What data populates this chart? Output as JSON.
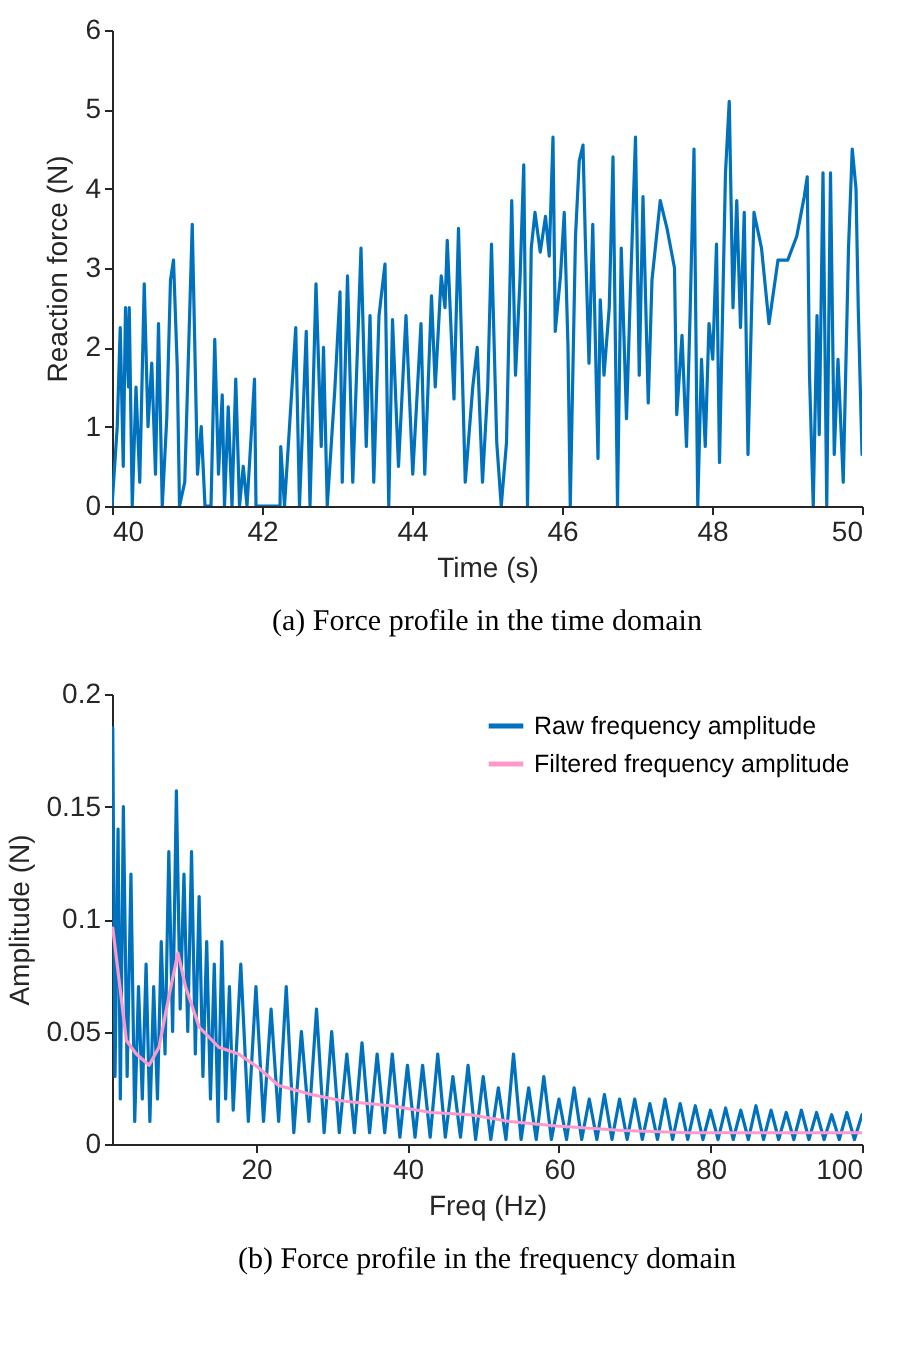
{
  "chart_data": [
    {
      "type": "line",
      "xlabel": "Time (s)",
      "ylabel": "Reaction force (N)",
      "annotations": [
        "(a) Force profile in the time domain"
      ],
      "xlim": [
        40,
        50
      ],
      "ylim": [
        0,
        6
      ],
      "xticks": [
        40,
        42,
        44,
        46,
        48,
        50
      ],
      "yticks": [
        0,
        1,
        2,
        3,
        4,
        5,
        6
      ],
      "grid": false,
      "legend": false,
      "x": [
        40.0,
        40.07,
        40.11,
        40.15,
        40.18,
        40.22,
        40.23,
        40.27,
        40.32,
        40.37,
        40.43,
        40.48,
        40.53,
        40.58,
        40.62,
        40.67,
        40.73,
        40.78,
        40.82,
        40.87,
        40.9,
        40.97,
        41.07,
        41.14,
        41.19,
        41.24,
        41.32,
        41.37,
        41.42,
        41.47,
        41.5,
        41.55,
        41.6,
        41.65,
        41.7,
        41.75,
        41.8,
        41.9,
        41.92,
        42.24,
        42.25,
        42.3,
        42.45,
        42.5,
        42.59,
        42.64,
        42.72,
        42.79,
        42.82,
        42.87,
        42.97,
        43.04,
        43.07,
        43.14,
        43.21,
        43.32,
        43.39,
        43.44,
        43.49,
        43.56,
        43.64,
        43.69,
        43.74,
        43.82,
        43.92,
        44.01,
        44.12,
        44.17,
        44.26,
        44.31,
        44.39,
        44.44,
        44.47,
        44.56,
        44.62,
        44.71,
        44.81,
        44.87,
        44.94,
        45.01,
        45.06,
        45.13,
        45.19,
        45.26,
        45.33,
        45.38,
        45.44,
        45.49,
        45.54,
        45.59,
        45.64,
        45.71,
        45.78,
        45.83,
        45.88,
        45.91,
        45.98,
        46.03,
        46.08,
        46.11,
        46.18,
        46.23,
        46.28,
        46.31,
        46.36,
        46.41,
        46.48,
        46.51,
        46.56,
        46.63,
        46.68,
        46.74,
        46.79,
        46.86,
        46.91,
        46.98,
        47.03,
        47.08,
        47.15,
        47.2,
        47.31,
        47.4,
        47.5,
        47.53,
        47.6,
        47.66,
        47.71,
        47.76,
        47.81,
        47.86,
        47.91,
        47.96,
        48.01,
        48.06,
        48.1,
        48.15,
        48.18,
        48.23,
        48.28,
        48.33,
        48.38,
        48.43,
        48.48,
        48.56,
        48.66,
        48.76,
        48.88,
        49.01,
        49.13,
        49.23,
        49.27,
        49.3,
        49.35,
        49.4,
        49.43,
        49.48,
        49.53,
        49.58,
        49.63,
        49.68,
        49.75,
        49.82,
        49.87,
        49.92,
        49.95,
        50.0
      ],
      "series": [
        {
          "color": "#0072bd",
          "values": [
            0,
            1.0,
            2.25,
            0.5,
            2.5,
            1.5,
            2.5,
            0,
            1.5,
            0.3,
            2.8,
            1.0,
            1.8,
            0.4,
            2.3,
            0,
            1.1,
            2.85,
            3.1,
            1.75,
            0,
            0.3,
            3.55,
            0.4,
            1.0,
            0,
            0,
            2.1,
            0.4,
            1.4,
            0,
            1.25,
            0,
            1.6,
            0,
            0.5,
            0,
            1.6,
            0,
            0,
            0.75,
            0,
            2.25,
            0,
            2.2,
            0,
            2.8,
            0.75,
            2.0,
            0,
            1.45,
            2.7,
            0.3,
            2.9,
            0.3,
            3.25,
            0.75,
            2.4,
            0.3,
            2.4,
            3.05,
            0,
            2.35,
            0.5,
            2.4,
            0.4,
            2.3,
            0.4,
            2.65,
            1.5,
            2.9,
            2.5,
            3.35,
            1.35,
            3.5,
            0.3,
            1.5,
            2.0,
            0.3,
            1.5,
            3.3,
            0.8,
            0,
            0.8,
            3.85,
            1.65,
            2.85,
            4.3,
            0,
            3.25,
            3.7,
            3.2,
            3.65,
            3.15,
            4.65,
            2.2,
            2.9,
            3.7,
            2.0,
            0,
            3.4,
            4.35,
            4.55,
            3.4,
            1.8,
            3.55,
            0.6,
            2.6,
            1.65,
            2.5,
            4.4,
            0,
            3.25,
            1.1,
            2.65,
            4.65,
            1.65,
            3.9,
            1.3,
            2.85,
            3.85,
            3.5,
            3.0,
            1.15,
            2.15,
            0.75,
            2.5,
            4.5,
            0,
            1.85,
            0.75,
            2.3,
            1.85,
            3.3,
            0.55,
            2.85,
            4.2,
            5.1,
            2.5,
            3.85,
            2.25,
            3.7,
            0.65,
            3.7,
            3.25,
            2.3,
            3.1,
            3.1,
            3.4,
            3.9,
            4.15,
            1.65,
            0,
            2.4,
            0.9,
            4.2,
            0,
            4.2,
            0.65,
            1.85,
            0.3,
            3.25,
            4.5,
            4.0,
            2.5,
            0.65
          ]
        }
      ]
    },
    {
      "type": "line",
      "xlabel": "Freq (Hz)",
      "ylabel": "Amplitude (N)",
      "annotations": [
        "(b) Force profile in the frequency domain"
      ],
      "xlim": [
        1,
        100
      ],
      "ylim": [
        0,
        0.2
      ],
      "xticks": [
        20,
        40,
        60,
        80,
        100
      ],
      "yticks": [
        0,
        0.05,
        0.1,
        0.15,
        0.2
      ],
      "grid": false,
      "legend": "top right",
      "series": [
        {
          "name": "Raw frequency amplitude",
          "color": "#0072bd",
          "x": [
            1.1,
            1.4,
            1.8,
            2.1,
            2.5,
            3,
            3.5,
            4,
            4.5,
            5,
            5.5,
            6,
            6.5,
            7,
            7.5,
            8,
            8.5,
            9,
            9.5,
            10,
            10.5,
            11,
            11.5,
            12,
            12.5,
            13,
            13.5,
            14,
            14.5,
            15,
            15.5,
            16,
            16.5,
            17,
            18,
            19,
            20,
            21,
            22,
            23,
            24,
            25,
            26,
            27,
            28,
            29,
            30,
            31,
            32,
            33,
            34,
            35,
            36,
            37,
            38,
            39,
            40,
            41,
            42,
            43,
            44,
            45,
            46,
            47,
            48,
            49,
            50,
            51,
            52,
            53,
            54,
            55,
            56,
            57,
            58,
            59,
            60,
            61,
            62,
            63,
            64,
            65,
            66,
            67,
            68,
            69,
            70,
            71,
            72,
            73,
            74,
            75,
            76,
            77,
            78,
            79,
            80,
            81,
            82,
            83,
            84,
            85,
            86,
            87,
            88,
            89,
            90,
            91,
            92,
            93,
            94,
            95,
            96,
            97,
            98,
            99,
            100
          ],
          "values": [
            0.185,
            0.03,
            0.14,
            0.02,
            0.15,
            0.03,
            0.12,
            0.01,
            0.07,
            0.02,
            0.08,
            0.01,
            0.07,
            0.02,
            0.09,
            0.04,
            0.13,
            0.05,
            0.157,
            0.06,
            0.12,
            0.05,
            0.13,
            0.04,
            0.11,
            0.03,
            0.09,
            0.02,
            0.08,
            0.01,
            0.09,
            0.02,
            0.07,
            0.015,
            0.08,
            0.01,
            0.07,
            0.01,
            0.06,
            0.01,
            0.07,
            0.005,
            0.05,
            0.01,
            0.06,
            0.005,
            0.05,
            0.005,
            0.04,
            0.005,
            0.045,
            0.005,
            0.04,
            0.005,
            0.04,
            0.003,
            0.035,
            0.003,
            0.035,
            0.003,
            0.04,
            0.003,
            0.03,
            0.003,
            0.035,
            0.002,
            0.03,
            0.002,
            0.025,
            0.002,
            0.04,
            0.002,
            0.025,
            0.002,
            0.03,
            0.002,
            0.02,
            0.002,
            0.025,
            0.002,
            0.02,
            0.002,
            0.022,
            0.002,
            0.02,
            0.002,
            0.02,
            0.002,
            0.018,
            0.002,
            0.02,
            0.002,
            0.018,
            0.002,
            0.017,
            0.002,
            0.015,
            0.002,
            0.016,
            0.002,
            0.015,
            0.002,
            0.017,
            0.002,
            0.015,
            0.002,
            0.014,
            0.002,
            0.015,
            0.002,
            0.014,
            0.002,
            0.013,
            0.002,
            0.014,
            0.002,
            0.013
          ]
        },
        {
          "name": "Filtered frequency amplitude",
          "color": "#ff99cc",
          "x": [
            1.1,
            2.9,
            4.2,
            5.9,
            7.2,
            8.6,
            9.7,
            10.7,
            12.5,
            15.1,
            17.7,
            20.3,
            23.0,
            27.3,
            31.7,
            37.8,
            43.1,
            48.3,
            53.5,
            59.7,
            68.4,
            77.1,
            85.9,
            100
          ],
          "values": [
            0.096,
            0.046,
            0.04,
            0.035,
            0.043,
            0.067,
            0.085,
            0.07,
            0.052,
            0.043,
            0.04,
            0.034,
            0.026,
            0.022,
            0.019,
            0.017,
            0.014,
            0.013,
            0.01,
            0.008,
            0.006,
            0.005,
            0.005,
            0.005
          ]
        }
      ]
    }
  ]
}
